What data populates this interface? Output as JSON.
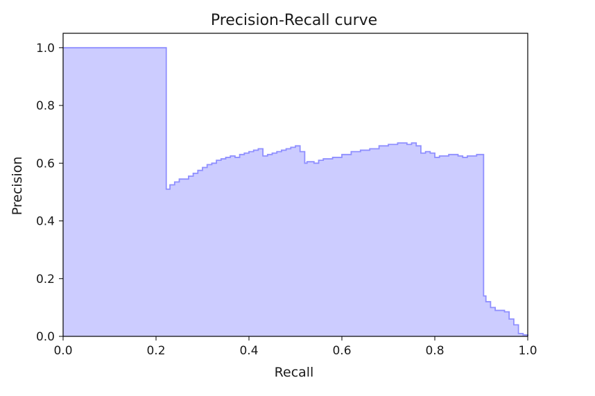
{
  "chart_data": {
    "type": "area",
    "title": "Precision-Recall curve",
    "xlabel": "Recall",
    "ylabel": "Precision",
    "xlim": [
      0.0,
      1.0
    ],
    "ylim": [
      0.0,
      1.05
    ],
    "xticks": [
      "0.0",
      "0.2",
      "0.4",
      "0.6",
      "0.8",
      "1.0"
    ],
    "yticks": [
      "0.0",
      "0.2",
      "0.4",
      "0.6",
      "0.8",
      "1.0"
    ],
    "grid": false,
    "legend": "none",
    "colors": {
      "fill": "#ccccff",
      "line": "#8f8fff",
      "axis": "#000000"
    },
    "series": [
      {
        "step": "post",
        "x": [
          0.0,
          0.222,
          0.222,
          0.23,
          0.24,
          0.25,
          0.26,
          0.27,
          0.28,
          0.29,
          0.3,
          0.31,
          0.32,
          0.33,
          0.34,
          0.35,
          0.36,
          0.37,
          0.38,
          0.39,
          0.4,
          0.41,
          0.42,
          0.43,
          0.44,
          0.45,
          0.46,
          0.47,
          0.48,
          0.49,
          0.5,
          0.51,
          0.52,
          0.525,
          0.54,
          0.55,
          0.56,
          0.58,
          0.6,
          0.62,
          0.64,
          0.66,
          0.68,
          0.7,
          0.72,
          0.74,
          0.75,
          0.76,
          0.77,
          0.78,
          0.79,
          0.8,
          0.81,
          0.83,
          0.85,
          0.86,
          0.87,
          0.89,
          0.9,
          0.905,
          0.91,
          0.92,
          0.93,
          0.94,
          0.95,
          0.96,
          0.97,
          0.98,
          0.99,
          1.0
        ],
        "y": [
          1.0,
          1.0,
          0.51,
          0.525,
          0.535,
          0.545,
          0.545,
          0.555,
          0.565,
          0.575,
          0.585,
          0.595,
          0.6,
          0.61,
          0.615,
          0.62,
          0.625,
          0.62,
          0.63,
          0.635,
          0.64,
          0.645,
          0.65,
          0.625,
          0.63,
          0.635,
          0.64,
          0.645,
          0.65,
          0.655,
          0.66,
          0.64,
          0.6,
          0.605,
          0.6,
          0.61,
          0.615,
          0.62,
          0.63,
          0.64,
          0.645,
          0.65,
          0.66,
          0.665,
          0.67,
          0.665,
          0.67,
          0.66,
          0.635,
          0.64,
          0.635,
          0.62,
          0.625,
          0.63,
          0.625,
          0.62,
          0.625,
          0.63,
          0.63,
          0.14,
          0.12,
          0.1,
          0.09,
          0.09,
          0.085,
          0.06,
          0.04,
          0.01,
          0.005,
          0.0
        ]
      }
    ]
  }
}
